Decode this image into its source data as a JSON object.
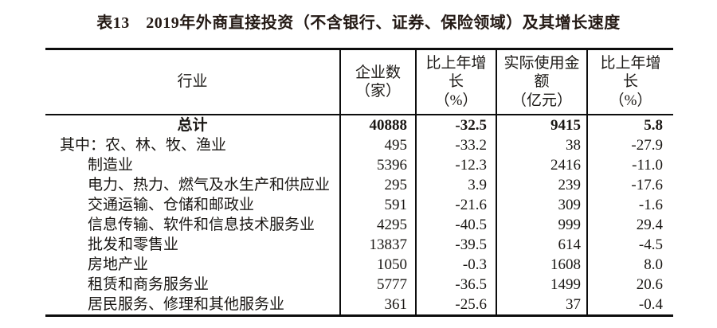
{
  "title": "表13　2019年外商直接投资（不含银行、证券、保险领域）及其增长速度",
  "table": {
    "columns": [
      "行业",
      "企业数\n（家）",
      "比上年增\n长\n（%）",
      "实际使用金\n额\n（亿元）",
      "比上年增\n长\n（%）"
    ],
    "rows": [
      {
        "industry": "总计",
        "enterprises": "40888",
        "growth_enterprises": "-32.5",
        "amount": "9415",
        "growth_amount": "5.8"
      },
      {
        "industry": "其中：农、林、牧、渔业",
        "enterprises": "495",
        "growth_enterprises": "-33.2",
        "amount": "38",
        "growth_amount": "-27.9"
      },
      {
        "industry": "制造业",
        "enterprises": "5396",
        "growth_enterprises": "-12.3",
        "amount": "2416",
        "growth_amount": "-11.0"
      },
      {
        "industry": "电力、热力、燃气及水生产和供应业",
        "enterprises": "295",
        "growth_enterprises": "3.9",
        "amount": "239",
        "growth_amount": "-17.6"
      },
      {
        "industry": "交通运输、仓储和邮政业",
        "enterprises": "591",
        "growth_enterprises": "-21.6",
        "amount": "309",
        "growth_amount": "-1.6"
      },
      {
        "industry": "信息传输、软件和信息技术服务业",
        "enterprises": "4295",
        "growth_enterprises": "-40.5",
        "amount": "999",
        "growth_amount": "29.4"
      },
      {
        "industry": "批发和零售业",
        "enterprises": "13837",
        "growth_enterprises": "-39.5",
        "amount": "614",
        "growth_amount": "-4.5"
      },
      {
        "industry": "房地产业",
        "enterprises": "1050",
        "growth_enterprises": "-0.3",
        "amount": "1608",
        "growth_amount": "8.0"
      },
      {
        "industry": "租赁和商务服务业",
        "enterprises": "5777",
        "growth_enterprises": "-36.5",
        "amount": "1499",
        "growth_amount": "20.6"
      },
      {
        "industry": "居民服务、修理和其他服务业",
        "enterprises": "361",
        "growth_enterprises": "-25.6",
        "amount": "37",
        "growth_amount": "-0.4"
      }
    ]
  }
}
